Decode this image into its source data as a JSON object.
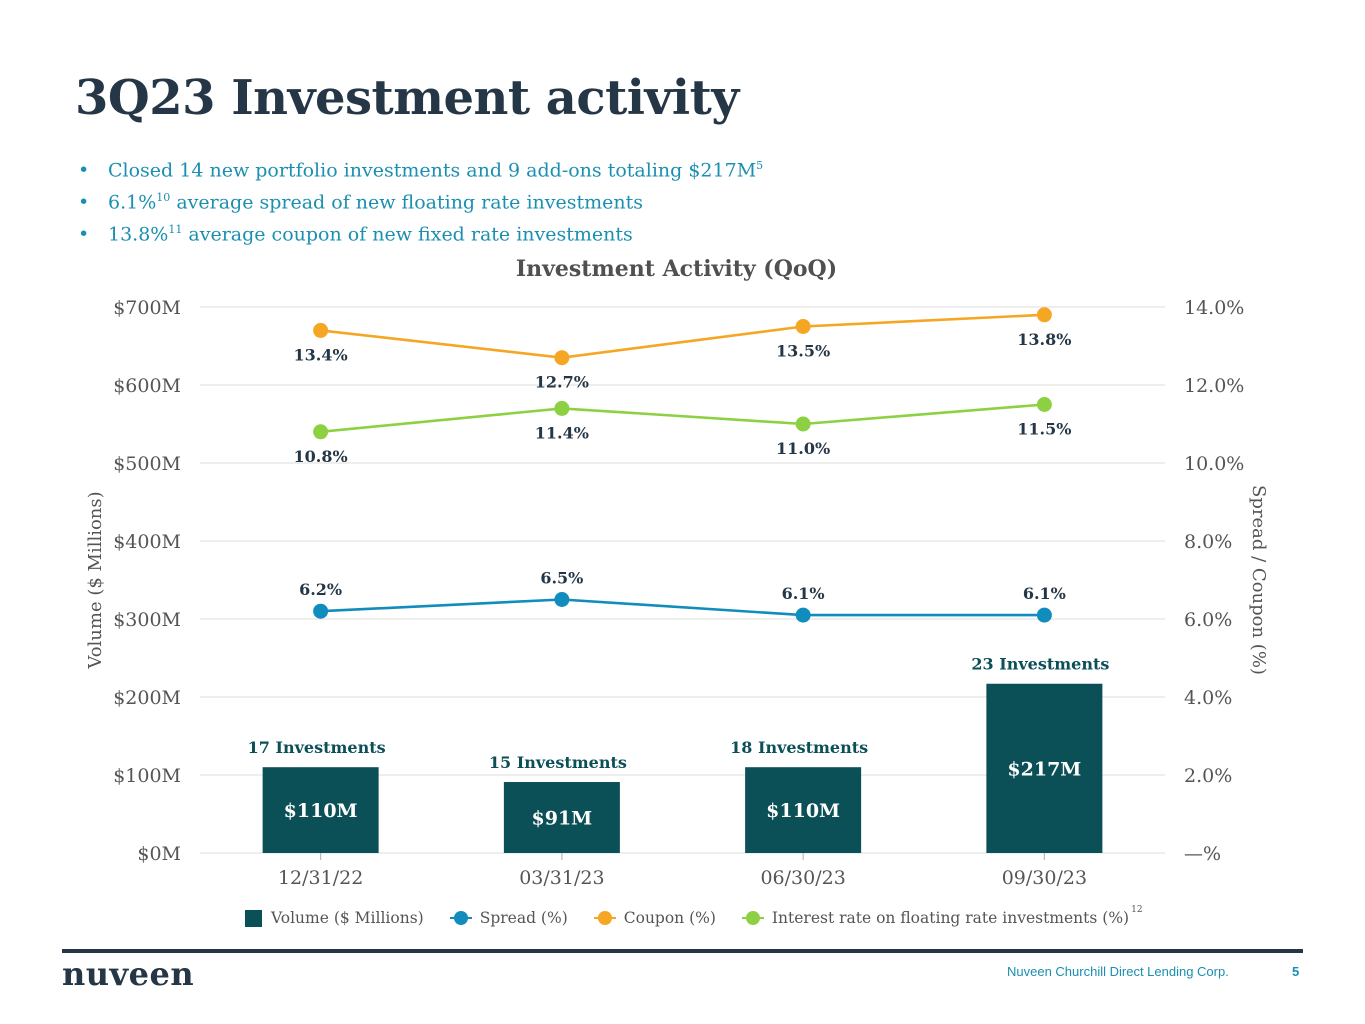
{
  "page": {
    "title": "3Q23 Investment activity",
    "bullets": [
      {
        "text": "Closed 14 new portfolio investments and 9 add-ons totaling $217M",
        "sup": "5",
        "sup_after": ""
      },
      {
        "text": "6.1%",
        "sup": "10",
        "sup_after": " average spread of new floating rate investments"
      },
      {
        "text": "13.8%",
        "sup": "11",
        "sup_after": " average coupon of new fixed rate investments"
      }
    ],
    "bullet_glyph": "•"
  },
  "chart_data": {
    "type": "bar",
    "title": "Investment Activity (QoQ)",
    "categories": [
      "12/31/22",
      "03/31/23",
      "06/30/23",
      "09/30/23"
    ],
    "ylabel": "Volume ($ Millions)",
    "ylabel_right": "Spread / Coupon (%)",
    "ylim": [
      0,
      700
    ],
    "ylim_right": [
      0,
      14
    ],
    "yticks": [
      0,
      100,
      200,
      300,
      400,
      500,
      600,
      700
    ],
    "ytick_labels": [
      "$0M",
      "$100M",
      "$200M",
      "$300M",
      "$400M",
      "$500M",
      "$600M",
      "$700M"
    ],
    "yticks_right": [
      0,
      2,
      4,
      6,
      8,
      10,
      12,
      14
    ],
    "ytick_labels_right": [
      "—%",
      "2.0%",
      "4.0%",
      "6.0%",
      "8.0%",
      "10.0%",
      "12.0%",
      "14.0%"
    ],
    "grid": true,
    "legend_position": "bottom",
    "bars": {
      "name": "Volume ($ Millions)",
      "color": "#0b4f57",
      "values": [
        110,
        91,
        110,
        217
      ],
      "value_labels": [
        "$110M",
        "$91M",
        "$110M",
        "$217M"
      ],
      "count_labels": [
        "17 Investments",
        "15 Investments",
        "18 Investments",
        "23 Investments"
      ]
    },
    "series": [
      {
        "name": "Spread (%)",
        "color": "#118dbd",
        "values": [
          6.2,
          6.5,
          6.1,
          6.1
        ],
        "labels": [
          "6.2%",
          "6.5%",
          "6.1%",
          "6.1%"
        ],
        "label_pos": "above"
      },
      {
        "name": "Coupon (%)",
        "color": "#f5a623",
        "values": [
          13.4,
          12.7,
          13.5,
          13.8
        ],
        "labels": [
          "13.4%",
          "12.7%",
          "13.5%",
          "13.8%"
        ],
        "label_pos": "below"
      },
      {
        "name": "Interest rate on floating rate investments (%)",
        "color": "#8dd143",
        "values": [
          10.8,
          11.4,
          11.0,
          11.5
        ],
        "labels": [
          "10.8%",
          "11.4%",
          "11.0%",
          "11.5%"
        ],
        "label_pos": "below"
      }
    ],
    "legend_footnote": "12"
  },
  "footer": {
    "logo": "nuveen",
    "company": "Nuveen Churchill Direct Lending Corp.",
    "page_number": "5"
  }
}
